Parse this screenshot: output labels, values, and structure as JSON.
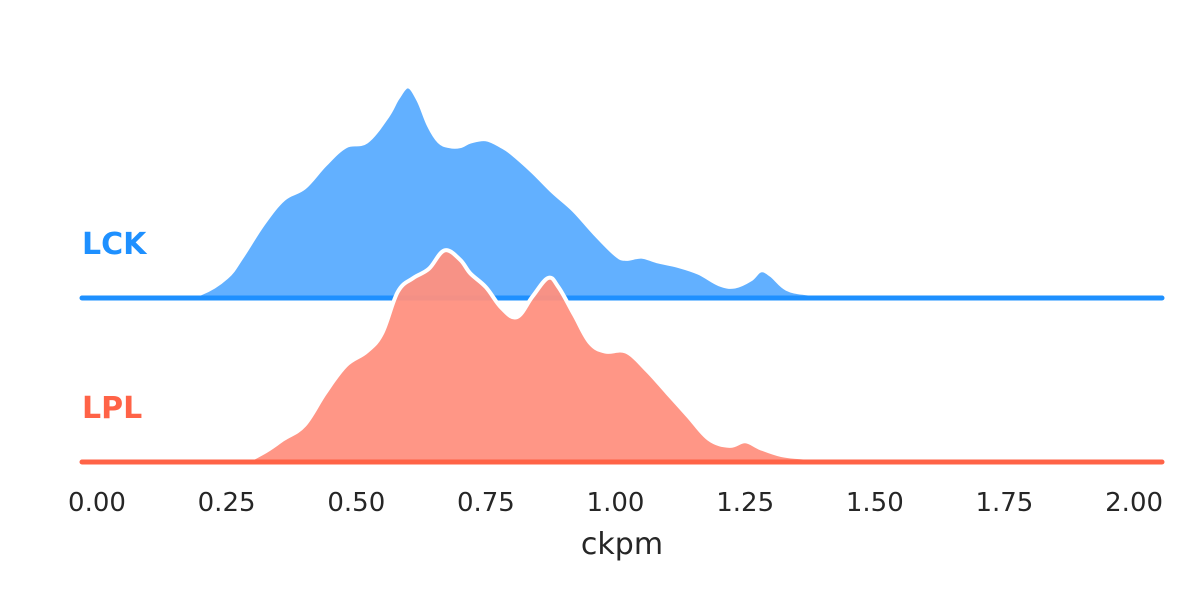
{
  "chart_data": {
    "type": "area",
    "title": "",
    "xlabel": "ckpm",
    "ylabel": "",
    "xlim": [
      0.0,
      2.05
    ],
    "xticks": [
      "0.00",
      "0.25",
      "0.50",
      "0.75",
      "1.00",
      "1.25",
      "1.50",
      "1.75",
      "2.00"
    ],
    "grid": false,
    "legend": "none",
    "series": [
      {
        "name": "LCK",
        "color": "#1e90ff",
        "fill": "#62b0ff",
        "x": [
          0.0,
          0.05,
          0.1,
          0.15,
          0.2,
          0.25,
          0.28,
          0.32,
          0.36,
          0.4,
          0.44,
          0.48,
          0.52,
          0.56,
          0.58,
          0.6,
          0.62,
          0.64,
          0.66,
          0.68,
          0.7,
          0.72,
          0.75,
          0.78,
          0.8,
          0.84,
          0.88,
          0.92,
          0.96,
          1.0,
          1.02,
          1.05,
          1.08,
          1.12,
          1.16,
          1.2,
          1.23,
          1.26,
          1.28,
          1.3,
          1.33,
          1.37,
          1.42,
          1.5,
          1.6,
          1.75,
          1.9,
          2.05
        ],
        "y": [
          0.0,
          0.0,
          0.001,
          0.004,
          0.02,
          0.09,
          0.18,
          0.32,
          0.43,
          0.48,
          0.58,
          0.66,
          0.68,
          0.79,
          0.87,
          0.92,
          0.86,
          0.75,
          0.68,
          0.66,
          0.66,
          0.68,
          0.69,
          0.66,
          0.63,
          0.55,
          0.46,
          0.38,
          0.28,
          0.19,
          0.17,
          0.18,
          0.16,
          0.14,
          0.11,
          0.06,
          0.05,
          0.08,
          0.12,
          0.1,
          0.04,
          0.02,
          0.01,
          0.002,
          0.0,
          0.003,
          0.0,
          0.0
        ]
      },
      {
        "name": "LPL",
        "color": "#ff6347",
        "fill": "#ff9080",
        "x": [
          0.0,
          0.1,
          0.2,
          0.28,
          0.32,
          0.36,
          0.4,
          0.44,
          0.48,
          0.52,
          0.55,
          0.58,
          0.61,
          0.64,
          0.67,
          0.7,
          0.72,
          0.75,
          0.78,
          0.81,
          0.84,
          0.87,
          0.89,
          0.92,
          0.95,
          0.98,
          1.02,
          1.06,
          1.1,
          1.14,
          1.18,
          1.22,
          1.25,
          1.28,
          1.32,
          1.36,
          1.4,
          1.45,
          1.5,
          1.55,
          1.6,
          1.75,
          1.9,
          2.05
        ],
        "y": [
          0.0,
          0.0,
          0.0,
          0.005,
          0.04,
          0.1,
          0.16,
          0.3,
          0.42,
          0.48,
          0.56,
          0.74,
          0.8,
          0.84,
          0.92,
          0.88,
          0.82,
          0.76,
          0.67,
          0.63,
          0.72,
          0.8,
          0.76,
          0.64,
          0.52,
          0.48,
          0.48,
          0.4,
          0.3,
          0.2,
          0.1,
          0.07,
          0.09,
          0.06,
          0.03,
          0.02,
          0.01,
          0.005,
          0.0,
          0.003,
          0.0,
          0.0,
          0.0,
          0.0
        ]
      }
    ]
  }
}
